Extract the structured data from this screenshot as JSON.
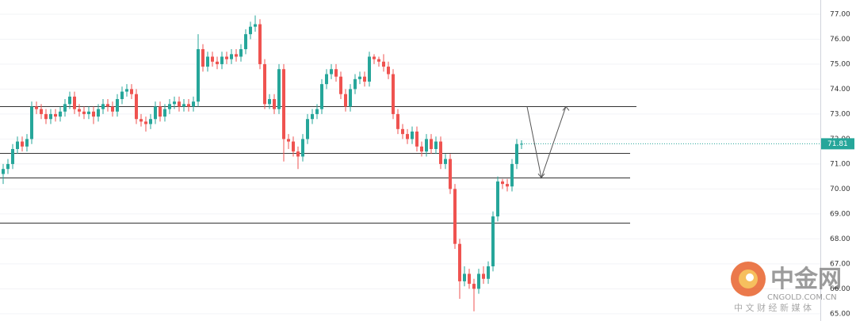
{
  "chart_data": {
    "type": "candlestick",
    "up_color": "#26a69a",
    "down_color": "#ef5350",
    "ylim": [
      64.71,
      77.57
    ],
    "yticks": [
      {
        "value": 65,
        "label": "65.00"
      },
      {
        "value": 66,
        "label": "66.00"
      },
      {
        "value": 67,
        "label": "67.00"
      },
      {
        "value": 68,
        "label": "68.00"
      },
      {
        "value": 69,
        "label": "69.00"
      },
      {
        "value": 70,
        "label": "70.00"
      },
      {
        "value": 71,
        "label": "71.00"
      },
      {
        "value": 72,
        "label": "72.00"
      },
      {
        "value": 73,
        "label": "73.00"
      },
      {
        "value": 74,
        "label": "74.00"
      },
      {
        "value": 75,
        "label": "75.00"
      },
      {
        "value": 76,
        "label": "76.00"
      },
      {
        "value": 77,
        "label": "77.00"
      }
    ],
    "grid": true,
    "open": [
      70.6,
      70.8,
      71.0,
      71.6,
      71.9,
      71.7,
      72.0,
      73.3,
      73.2,
      73.0,
      72.8,
      73.0,
      72.9,
      73.1,
      73.4,
      73.7,
      73.2,
      73.1,
      73.0,
      73.1,
      72.9,
      73.2,
      73.4,
      73.3,
      73.1,
      73.6,
      73.9,
      74.0,
      73.8,
      72.8,
      72.7,
      72.6,
      72.8,
      73.3,
      72.9,
      73.2,
      73.4,
      73.5,
      73.3,
      73.4,
      73.3,
      73.5,
      75.6,
      74.9,
      75.3,
      75.1,
      75.0,
      75.3,
      75.2,
      75.4,
      75.3,
      75.6,
      76.2,
      76.5,
      76.6,
      75.0,
      73.4,
      73.6,
      73.2,
      74.8,
      72.0,
      71.9,
      71.5,
      71.3,
      72.0,
      72.8,
      73.0,
      73.2,
      74.2,
      74.6,
      74.8,
      74.5,
      73.8,
      73.3,
      74.0,
      74.4,
      74.5,
      74.3,
      75.3,
      75.2,
      75.1,
      74.9,
      74.6,
      73.0,
      72.4,
      72.2,
      72.0,
      72.3,
      71.7,
      71.5,
      72.0,
      71.6,
      71.9,
      71.0,
      71.2,
      70.0,
      67.8,
      66.3,
      66.6,
      66.2,
      66.0,
      66.6,
      66.4,
      66.9,
      68.9,
      70.3,
      70.2,
      70.1,
      71.0,
      71.8
    ],
    "high": [
      71.0,
      71.2,
      71.8,
      72.1,
      72.1,
      72.2,
      73.5,
      73.5,
      73.4,
      73.2,
      73.2,
      73.2,
      73.3,
      73.6,
      73.9,
      73.9,
      73.4,
      73.3,
      73.3,
      73.3,
      73.4,
      73.6,
      73.6,
      73.5,
      73.8,
      74.1,
      74.2,
      74.2,
      74.0,
      73.0,
      72.9,
      73.0,
      73.5,
      73.5,
      73.4,
      73.6,
      73.7,
      73.7,
      73.6,
      73.6,
      73.7,
      76.2,
      75.8,
      75.5,
      75.5,
      75.3,
      75.5,
      75.5,
      75.6,
      75.6,
      75.8,
      76.4,
      76.7,
      76.95,
      76.8,
      75.2,
      73.8,
      73.8,
      75.0,
      75.0,
      72.2,
      72.1,
      71.7,
      72.2,
      73.0,
      73.2,
      73.4,
      74.4,
      74.8,
      75.0,
      75.0,
      74.7,
      74.0,
      74.2,
      74.6,
      74.7,
      74.7,
      75.5,
      75.4,
      75.3,
      75.4,
      75.1,
      74.8,
      73.2,
      72.6,
      72.4,
      72.5,
      72.5,
      71.9,
      72.2,
      72.2,
      72.1,
      72.1,
      71.4,
      71.4,
      70.2,
      68.0,
      66.9,
      66.8,
      66.4,
      66.8,
      66.9,
      67.1,
      69.1,
      70.5,
      70.4,
      70.4,
      71.2,
      72.0,
      71.95
    ],
    "low": [
      70.2,
      70.6,
      70.8,
      71.4,
      71.5,
      71.5,
      71.8,
      73.0,
      72.8,
      72.6,
      72.6,
      72.7,
      72.7,
      72.9,
      73.2,
      73.0,
      72.9,
      72.8,
      72.8,
      72.6,
      72.7,
      73.0,
      73.1,
      72.9,
      72.9,
      73.4,
      73.7,
      73.6,
      72.6,
      72.5,
      72.3,
      72.4,
      72.6,
      72.7,
      72.7,
      73.0,
      73.2,
      73.1,
      73.1,
      73.1,
      73.1,
      73.3,
      74.7,
      74.7,
      74.9,
      74.8,
      74.8,
      75.0,
      75.0,
      75.1,
      75.1,
      75.4,
      76.0,
      76.3,
      74.8,
      73.2,
      73.2,
      73.0,
      73.0,
      71.1,
      71.6,
      71.3,
      70.8,
      71.1,
      71.8,
      72.6,
      72.8,
      73.0,
      74.0,
      74.4,
      74.3,
      73.6,
      73.1,
      73.1,
      73.8,
      74.2,
      74.1,
      74.1,
      75.0,
      74.9,
      74.7,
      74.4,
      72.8,
      72.2,
      72.0,
      71.8,
      71.8,
      71.5,
      71.3,
      71.3,
      71.4,
      71.4,
      70.8,
      70.8,
      69.8,
      67.6,
      65.6,
      66.1,
      66.0,
      65.1,
      65.8,
      66.2,
      66.2,
      66.7,
      68.7,
      70.0,
      69.9,
      69.9,
      70.8,
      71.6
    ],
    "close": [
      70.8,
      71.0,
      71.6,
      71.9,
      71.7,
      72.0,
      73.3,
      73.2,
      73.0,
      72.8,
      73.0,
      72.9,
      73.1,
      73.4,
      73.7,
      73.2,
      73.1,
      73.0,
      73.1,
      72.9,
      73.2,
      73.4,
      73.3,
      73.1,
      73.6,
      73.9,
      74.0,
      73.8,
      72.8,
      72.7,
      72.6,
      72.8,
      73.3,
      72.9,
      73.2,
      73.4,
      73.5,
      73.3,
      73.4,
      73.3,
      73.5,
      75.6,
      74.9,
      75.3,
      75.1,
      75.0,
      75.3,
      75.2,
      75.4,
      75.3,
      75.6,
      76.2,
      76.5,
      76.6,
      75.0,
      73.4,
      73.6,
      73.2,
      74.8,
      72.0,
      71.9,
      71.5,
      71.3,
      72.0,
      72.8,
      73.0,
      73.2,
      74.2,
      74.6,
      74.8,
      74.5,
      73.8,
      73.3,
      74.0,
      74.4,
      74.5,
      74.3,
      75.3,
      75.2,
      75.1,
      74.9,
      74.6,
      73.0,
      72.4,
      72.2,
      72.0,
      72.3,
      71.7,
      71.5,
      72.0,
      71.6,
      71.9,
      71.0,
      71.2,
      70.0,
      67.8,
      66.3,
      66.6,
      66.2,
      66.0,
      66.6,
      66.4,
      66.9,
      68.9,
      70.3,
      70.2,
      70.1,
      71.0,
      71.8,
      71.81
    ],
    "levels": [
      73.3,
      71.45,
      70.45,
      68.65
    ],
    "projection": [
      73.3,
      70.45,
      73.3
    ],
    "watermark": {
      "logo": "中金网",
      "site": "CNGOLD.COM.CN",
      "slogan": "中 文 财 经 新 媒 体"
    }
  }
}
